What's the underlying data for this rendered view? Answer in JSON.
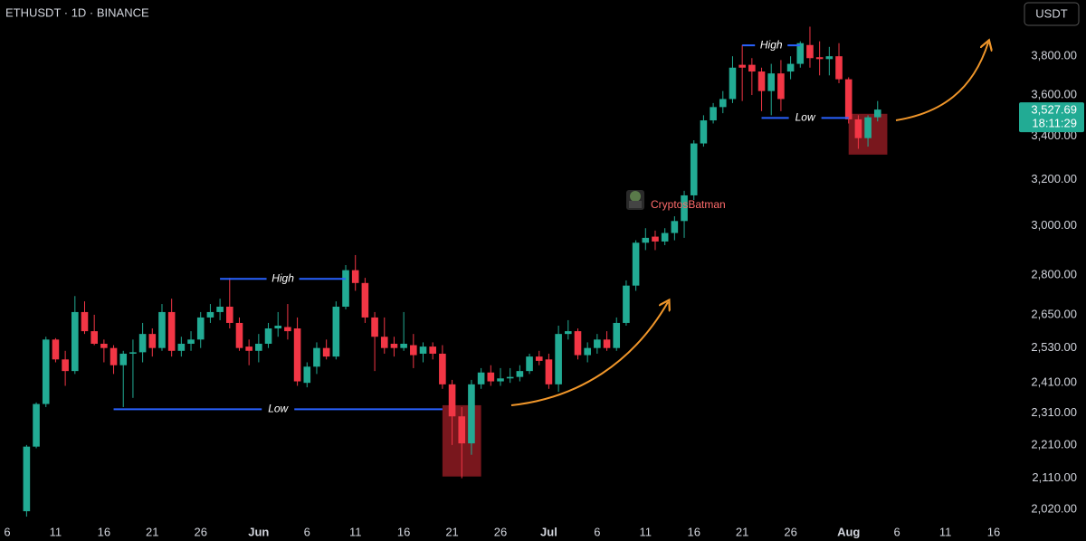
{
  "header": {
    "symbol": "ETHUSDT · 1D · BINANCE",
    "currency_button": "USDT"
  },
  "chart_data": {
    "type": "candlestick",
    "log_scale": true,
    "up_color": "#22ab94",
    "down_color": "#f23645",
    "ylim": [
      1990,
      4110
    ],
    "yticks": [
      {
        "value": 3800,
        "label": "3,800.00"
      },
      {
        "value": 3600,
        "label": "3,600.00"
      },
      {
        "value": 3400,
        "label": "3,400.00"
      },
      {
        "value": 3200,
        "label": "3,200.00"
      },
      {
        "value": 3000,
        "label": "3,000.00"
      },
      {
        "value": 2800,
        "label": "2,800.00"
      },
      {
        "value": 2650,
        "label": "2,650.00"
      },
      {
        "value": 2530,
        "label": "2,530.00"
      },
      {
        "value": 2410,
        "label": "2,410.00"
      },
      {
        "value": 2310,
        "label": "2,310.00"
      },
      {
        "value": 2210,
        "label": "2,210.00"
      },
      {
        "value": 2110,
        "label": "2,110.00"
      },
      {
        "value": 2020,
        "label": "2,020.00"
      }
    ],
    "categories": [
      "6",
      null,
      null,
      null,
      null,
      "11",
      null,
      null,
      null,
      null,
      "16",
      null,
      null,
      null,
      null,
      "21",
      null,
      null,
      null,
      null,
      "26",
      null,
      null,
      null,
      null,
      null,
      "Jun",
      null,
      null,
      null,
      null,
      "6",
      null,
      null,
      null,
      null,
      "11",
      null,
      null,
      null,
      null,
      "16",
      null,
      null,
      null,
      null,
      "21",
      null,
      null,
      null,
      null,
      "26",
      null,
      null,
      null,
      null,
      "Jul",
      null,
      null,
      null,
      null,
      "6",
      null,
      null,
      null,
      null,
      "11",
      null,
      null,
      null,
      null,
      "16",
      null,
      null,
      null,
      null,
      "21",
      null,
      null,
      null,
      null,
      "26",
      null,
      null,
      null,
      null,
      null,
      "Aug",
      null,
      null,
      null,
      null,
      "6",
      null,
      null,
      null,
      null,
      "11",
      null,
      null,
      null,
      null,
      "16"
    ],
    "open": [
      null,
      null,
      2015,
      2205,
      2340,
      2560,
      2490,
      2450,
      2660,
      2590,
      2545,
      2530,
      2470,
      2510,
      2515,
      2580,
      2530,
      2660,
      2520,
      2545,
      2560,
      2640,
      2660,
      2680,
      2620,
      2535,
      2520,
      2545,
      2600,
      2605,
      2600,
      2410,
      2465,
      2530,
      2500,
      2680,
      2820,
      2770,
      2640,
      2570,
      2545,
      2530,
      2540,
      2510,
      2535,
      2510,
      2405,
      2300,
      2215,
      2405,
      2445,
      2415,
      2425,
      2430,
      2450,
      2500,
      2490,
      2405,
      2580,
      2590,
      2505,
      2530,
      2560,
      2530,
      2620,
      2760,
      2930,
      2955,
      2935,
      2970,
      3020,
      3130,
      3365,
      3475,
      3540,
      3580,
      3755,
      3755,
      3720,
      3620,
      3710,
      3720,
      3760,
      3860,
      3795,
      3785,
      3800,
      3680,
      3480,
      3390,
      3490,
      null,
      null,
      null,
      null,
      null,
      null,
      null,
      null,
      null,
      null,
      null,
      null
    ],
    "high": [
      null,
      null,
      2210,
      2345,
      2570,
      2565,
      2520,
      2720,
      2700,
      2650,
      2560,
      2540,
      2520,
      2560,
      2620,
      2600,
      2690,
      2710,
      2570,
      2590,
      2660,
      2690,
      2710,
      2790,
      2640,
      2560,
      2580,
      2620,
      2660,
      2690,
      2640,
      2480,
      2550,
      2560,
      2700,
      2840,
      2880,
      2790,
      2660,
      2640,
      2570,
      2660,
      2580,
      2550,
      2550,
      2540,
      2420,
      2330,
      2420,
      2460,
      2470,
      2460,
      2460,
      2470,
      2510,
      2520,
      2510,
      2610,
      2630,
      2600,
      2550,
      2580,
      2590,
      2640,
      2780,
      2940,
      2990,
      2980,
      2990,
      3040,
      3150,
      3380,
      3500,
      3560,
      3620,
      3800,
      3860,
      3790,
      3740,
      3760,
      3780,
      3800,
      3880,
      3960,
      3880,
      3850,
      3870,
      3690,
      3500,
      3500,
      3570,
      null,
      null,
      null,
      null,
      null,
      null,
      null,
      null,
      null,
      null,
      null,
      null
    ],
    "low": [
      null,
      null,
      2000,
      2200,
      2330,
      2480,
      2400,
      2440,
      2580,
      2540,
      2480,
      2440,
      2330,
      2360,
      2480,
      2500,
      2520,
      2500,
      2500,
      2520,
      2530,
      2620,
      2630,
      2600,
      2520,
      2470,
      2480,
      2530,
      2570,
      2560,
      2400,
      2395,
      2440,
      2490,
      2490,
      2670,
      2740,
      2620,
      2450,
      2510,
      2500,
      2520,
      2460,
      2480,
      2490,
      2390,
      2210,
      2110,
      2180,
      2390,
      2400,
      2400,
      2410,
      2415,
      2440,
      2470,
      2390,
      2380,
      2560,
      2490,
      2480,
      2510,
      2520,
      2520,
      2610,
      2740,
      2900,
      2900,
      2920,
      2940,
      2950,
      3110,
      3350,
      3460,
      3510,
      3560,
      3570,
      3600,
      3520,
      3500,
      3520,
      3680,
      3740,
      3740,
      3700,
      3700,
      3660,
      3460,
      3340,
      3350,
      3470,
      null,
      null,
      null,
      null,
      null,
      null,
      null,
      null,
      null,
      null,
      null,
      null
    ],
    "close": [
      null,
      null,
      2205,
      2340,
      2560,
      2490,
      2450,
      2660,
      2590,
      2545,
      2530,
      2470,
      2510,
      2515,
      2580,
      2530,
      2660,
      2520,
      2545,
      2560,
      2640,
      2660,
      2680,
      2620,
      2530,
      2520,
      2545,
      2600,
      2610,
      2590,
      2415,
      2465,
      2530,
      2500,
      2680,
      2820,
      2770,
      2640,
      2570,
      2530,
      2530,
      2545,
      2505,
      2535,
      2510,
      2405,
      2300,
      2215,
      2405,
      2445,
      2415,
      2425,
      2430,
      2450,
      2500,
      2485,
      2405,
      2580,
      2590,
      2505,
      2530,
      2560,
      2530,
      2620,
      2760,
      2930,
      2950,
      2935,
      2970,
      3020,
      3130,
      3365,
      3475,
      3540,
      3580,
      3740,
      3740,
      3720,
      3620,
      3710,
      3580,
      3760,
      3870,
      3790,
      3785,
      3800,
      3680,
      3480,
      3390,
      3490,
      3527.69,
      null,
      null,
      null,
      null,
      null,
      null,
      null,
      null,
      null,
      null,
      null,
      null
    ],
    "last_price": {
      "value": 3527.69,
      "label": "3,527.69"
    },
    "countdown": "18:11:29",
    "annotation_color": "#2962ff",
    "annotations": [
      {
        "label": "High",
        "value": 2786,
        "start": 22,
        "end": 35
      },
      {
        "label": "Low",
        "value": 2323,
        "start": 11,
        "end": 45
      },
      {
        "label": "High",
        "value": 3858,
        "start": 76,
        "end": 82
      },
      {
        "label": "Low",
        "value": 3487,
        "start": 78,
        "end": 87
      }
    ],
    "box_color": "#8e1b22",
    "boxes": [
      {
        "top": 2336,
        "bottom": 2115,
        "start": 45,
        "end": 49
      },
      {
        "top": 3507,
        "bottom": 3313,
        "start": 87,
        "end": 91
      }
    ],
    "watermark": "CryptosBatman"
  }
}
